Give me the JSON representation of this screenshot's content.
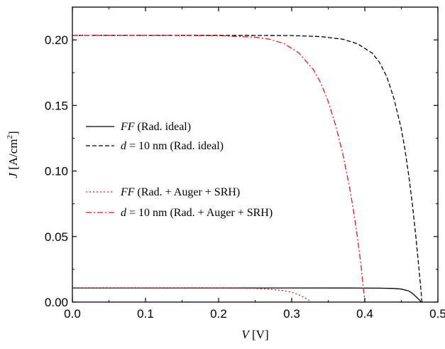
{
  "chart_data": {
    "type": "line",
    "xlabel": {
      "var": "V",
      "unit": " [V]"
    },
    "ylabel": {
      "var": "J",
      "unit": " [A/cm",
      "sup": "2",
      "close": "]"
    },
    "xlim": [
      0.0,
      0.5
    ],
    "ylim": [
      0.0,
      0.225
    ],
    "x_ticks": [
      0.0,
      0.1,
      0.2,
      0.3,
      0.4,
      0.5
    ],
    "x_tick_labels": [
      "0.0",
      "0.1",
      "0.2",
      "0.3",
      "0.4",
      "0.5"
    ],
    "y_ticks": [
      0.0,
      0.05,
      0.1,
      0.15,
      0.2
    ],
    "y_tick_labels": [
      "0.00",
      "0.05",
      "0.10",
      "0.15",
      "0.20"
    ],
    "grid": false,
    "legend_position": "middle-left",
    "series": [
      {
        "legend_var": "FF",
        "legend_rest": " (Rad. ideal)",
        "color": "#000000",
        "dash": "solid",
        "points": [
          [
            0,
            0.0108
          ],
          [
            0.1,
            0.0108
          ],
          [
            0.2,
            0.0108
          ],
          [
            0.3,
            0.0108
          ],
          [
            0.38,
            0.01075
          ],
          [
            0.42,
            0.0106
          ],
          [
            0.44,
            0.0104
          ],
          [
            0.45,
            0.0099
          ],
          [
            0.46,
            0.0085
          ],
          [
            0.465,
            0.0067
          ],
          [
            0.47,
            0.0042
          ],
          [
            0.475,
            0.0014
          ],
          [
            0.477,
            0.0
          ]
        ]
      },
      {
        "legend_var": "d",
        "legend_rest": " = 10 nm (Rad. ideal)",
        "color": "#000000",
        "dash": "dashed",
        "points": [
          [
            0,
            0.2035
          ],
          [
            0.1,
            0.2035
          ],
          [
            0.2,
            0.2035
          ],
          [
            0.3,
            0.2033
          ],
          [
            0.34,
            0.2025
          ],
          [
            0.37,
            0.2005
          ],
          [
            0.39,
            0.197
          ],
          [
            0.41,
            0.19
          ],
          [
            0.42,
            0.183
          ],
          [
            0.43,
            0.172
          ],
          [
            0.44,
            0.155
          ],
          [
            0.45,
            0.132
          ],
          [
            0.455,
            0.116
          ],
          [
            0.46,
            0.097
          ],
          [
            0.465,
            0.075
          ],
          [
            0.47,
            0.049
          ],
          [
            0.474,
            0.026
          ],
          [
            0.477,
            0.008
          ],
          [
            0.478,
            0.0
          ]
        ]
      },
      {
        "legend_var": "FF",
        "legend_rest": " (Rad. + Auger + SRH)",
        "color": "#e8141b",
        "dash": "dotted",
        "points": [
          [
            0,
            0.0108
          ],
          [
            0.1,
            0.0108
          ],
          [
            0.2,
            0.0107
          ],
          [
            0.25,
            0.0104
          ],
          [
            0.27,
            0.0098
          ],
          [
            0.29,
            0.0087
          ],
          [
            0.3,
            0.0075
          ],
          [
            0.31,
            0.0055
          ],
          [
            0.32,
            0.0027
          ],
          [
            0.327,
            0.0
          ]
        ]
      },
      {
        "legend_var": "d",
        "legend_rest": " = 10 nm (Rad. + Auger + SRH)",
        "color": "#e8141b",
        "dash": "dashdot",
        "points": [
          [
            0,
            0.2035
          ],
          [
            0.1,
            0.2035
          ],
          [
            0.2,
            0.2032
          ],
          [
            0.25,
            0.202
          ],
          [
            0.27,
            0.2005
          ],
          [
            0.29,
            0.197
          ],
          [
            0.31,
            0.19
          ],
          [
            0.33,
            0.177
          ],
          [
            0.34,
            0.167
          ],
          [
            0.35,
            0.153
          ],
          [
            0.36,
            0.135
          ],
          [
            0.37,
            0.113
          ],
          [
            0.38,
            0.085
          ],
          [
            0.385,
            0.068
          ],
          [
            0.39,
            0.049
          ],
          [
            0.395,
            0.027
          ],
          [
            0.398,
            0.011
          ],
          [
            0.4,
            0.0
          ]
        ]
      }
    ]
  }
}
